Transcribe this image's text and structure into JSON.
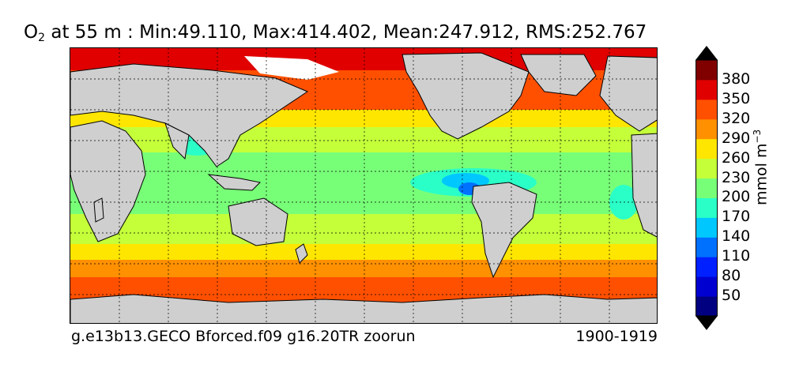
{
  "title": {
    "variable": "O",
    "subscript": "2",
    "rest": "at 55 m : Min:49.110, Max:414.402, Mean:247.912, RMS:252.767"
  },
  "footer": {
    "case_name": "g.e13b13.GECO Bforced.f09 g16.20TR zoorun",
    "years": "1900-1919"
  },
  "colorbar": {
    "unit_base": "mmol m",
    "unit_exp": "−3",
    "ticks": [
      "380",
      "350",
      "320",
      "290",
      "260",
      "230",
      "200",
      "170",
      "140",
      "110",
      "80",
      "50"
    ],
    "colors": [
      "#000080",
      "#0000d0",
      "#0020ff",
      "#0070ff",
      "#00c8ff",
      "#2affc8",
      "#78ff78",
      "#c4ff3a",
      "#ffe600",
      "#ff9000",
      "#ff5000",
      "#e00000",
      "#800000"
    ],
    "over_color": "#000000",
    "under_color": "#000000"
  },
  "map": {
    "land_color": "#cfcfcf",
    "ice_color": "#ffffff",
    "gridlines": true
  }
}
